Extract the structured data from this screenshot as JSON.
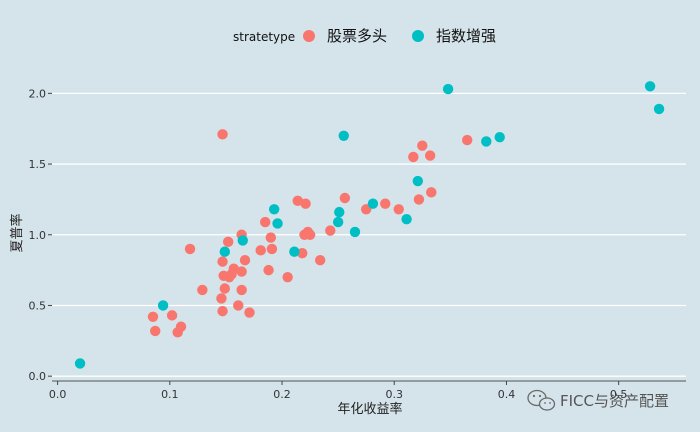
{
  "chart_data": {
    "type": "scatter",
    "xlabel": "年化收益率",
    "ylabel": "夏普率",
    "xlim": [
      -0.005,
      0.56
    ],
    "ylim": [
      -0.02,
      2.25
    ],
    "x_ticks": [
      0.0,
      0.1,
      0.2,
      0.3,
      0.4,
      0.5
    ],
    "x_tick_labels": [
      "0.0",
      "0.1",
      "0.2",
      "0.3",
      "0.4",
      "0.5"
    ],
    "y_ticks": [
      0.0,
      0.5,
      1.0,
      1.5,
      2.0
    ],
    "y_tick_labels": [
      "0.0",
      "0.5",
      "1.0",
      "1.5",
      "2.0"
    ],
    "grid": "horizontal",
    "legend": {
      "title": "stratetype",
      "position": "top"
    },
    "series": [
      {
        "name": "股票多头",
        "color": "#f8766d",
        "points": [
          [
            0.085,
            0.42
          ],
          [
            0.087,
            0.32
          ],
          [
            0.102,
            0.43
          ],
          [
            0.107,
            0.31
          ],
          [
            0.11,
            0.35
          ],
          [
            0.118,
            0.9
          ],
          [
            0.129,
            0.61
          ],
          [
            0.146,
            0.55
          ],
          [
            0.147,
            0.46
          ],
          [
            0.147,
            1.71
          ],
          [
            0.147,
            0.81
          ],
          [
            0.148,
            0.71
          ],
          [
            0.149,
            0.62
          ],
          [
            0.152,
            0.95
          ],
          [
            0.153,
            0.7
          ],
          [
            0.155,
            0.72
          ],
          [
            0.157,
            0.76
          ],
          [
            0.161,
            0.5
          ],
          [
            0.164,
            0.74
          ],
          [
            0.164,
            0.61
          ],
          [
            0.164,
            1.0
          ],
          [
            0.167,
            0.82
          ],
          [
            0.171,
            0.45
          ],
          [
            0.181,
            0.89
          ],
          [
            0.185,
            1.09
          ],
          [
            0.188,
            0.75
          ],
          [
            0.19,
            0.98
          ],
          [
            0.191,
            0.9
          ],
          [
            0.205,
            0.7
          ],
          [
            0.214,
            1.24
          ],
          [
            0.218,
            0.87
          ],
          [
            0.22,
            1.0
          ],
          [
            0.221,
            1.22
          ],
          [
            0.223,
            1.02
          ],
          [
            0.225,
            1.0
          ],
          [
            0.234,
            0.82
          ],
          [
            0.243,
            1.03
          ],
          [
            0.256,
            1.26
          ],
          [
            0.275,
            1.18
          ],
          [
            0.292,
            1.22
          ],
          [
            0.304,
            1.18
          ],
          [
            0.317,
            1.55
          ],
          [
            0.322,
            1.25
          ],
          [
            0.325,
            1.63
          ],
          [
            0.332,
            1.56
          ],
          [
            0.333,
            1.3
          ],
          [
            0.365,
            1.67
          ]
        ]
      },
      {
        "name": "指数增强",
        "color": "#00bfc4",
        "points": [
          [
            0.02,
            0.09
          ],
          [
            0.094,
            0.5
          ],
          [
            0.149,
            0.88
          ],
          [
            0.165,
            0.96
          ],
          [
            0.193,
            1.18
          ],
          [
            0.196,
            1.08
          ],
          [
            0.211,
            0.88
          ],
          [
            0.25,
            1.09
          ],
          [
            0.251,
            1.16
          ],
          [
            0.255,
            1.7
          ],
          [
            0.265,
            1.02
          ],
          [
            0.281,
            1.22
          ],
          [
            0.311,
            1.11
          ],
          [
            0.321,
            1.38
          ],
          [
            0.348,
            2.03
          ],
          [
            0.382,
            1.66
          ],
          [
            0.394,
            1.69
          ],
          [
            0.528,
            2.05
          ],
          [
            0.536,
            1.89
          ]
        ]
      }
    ]
  },
  "watermark": {
    "text": "FICC与资产配置",
    "icon": "wechat-icon"
  }
}
